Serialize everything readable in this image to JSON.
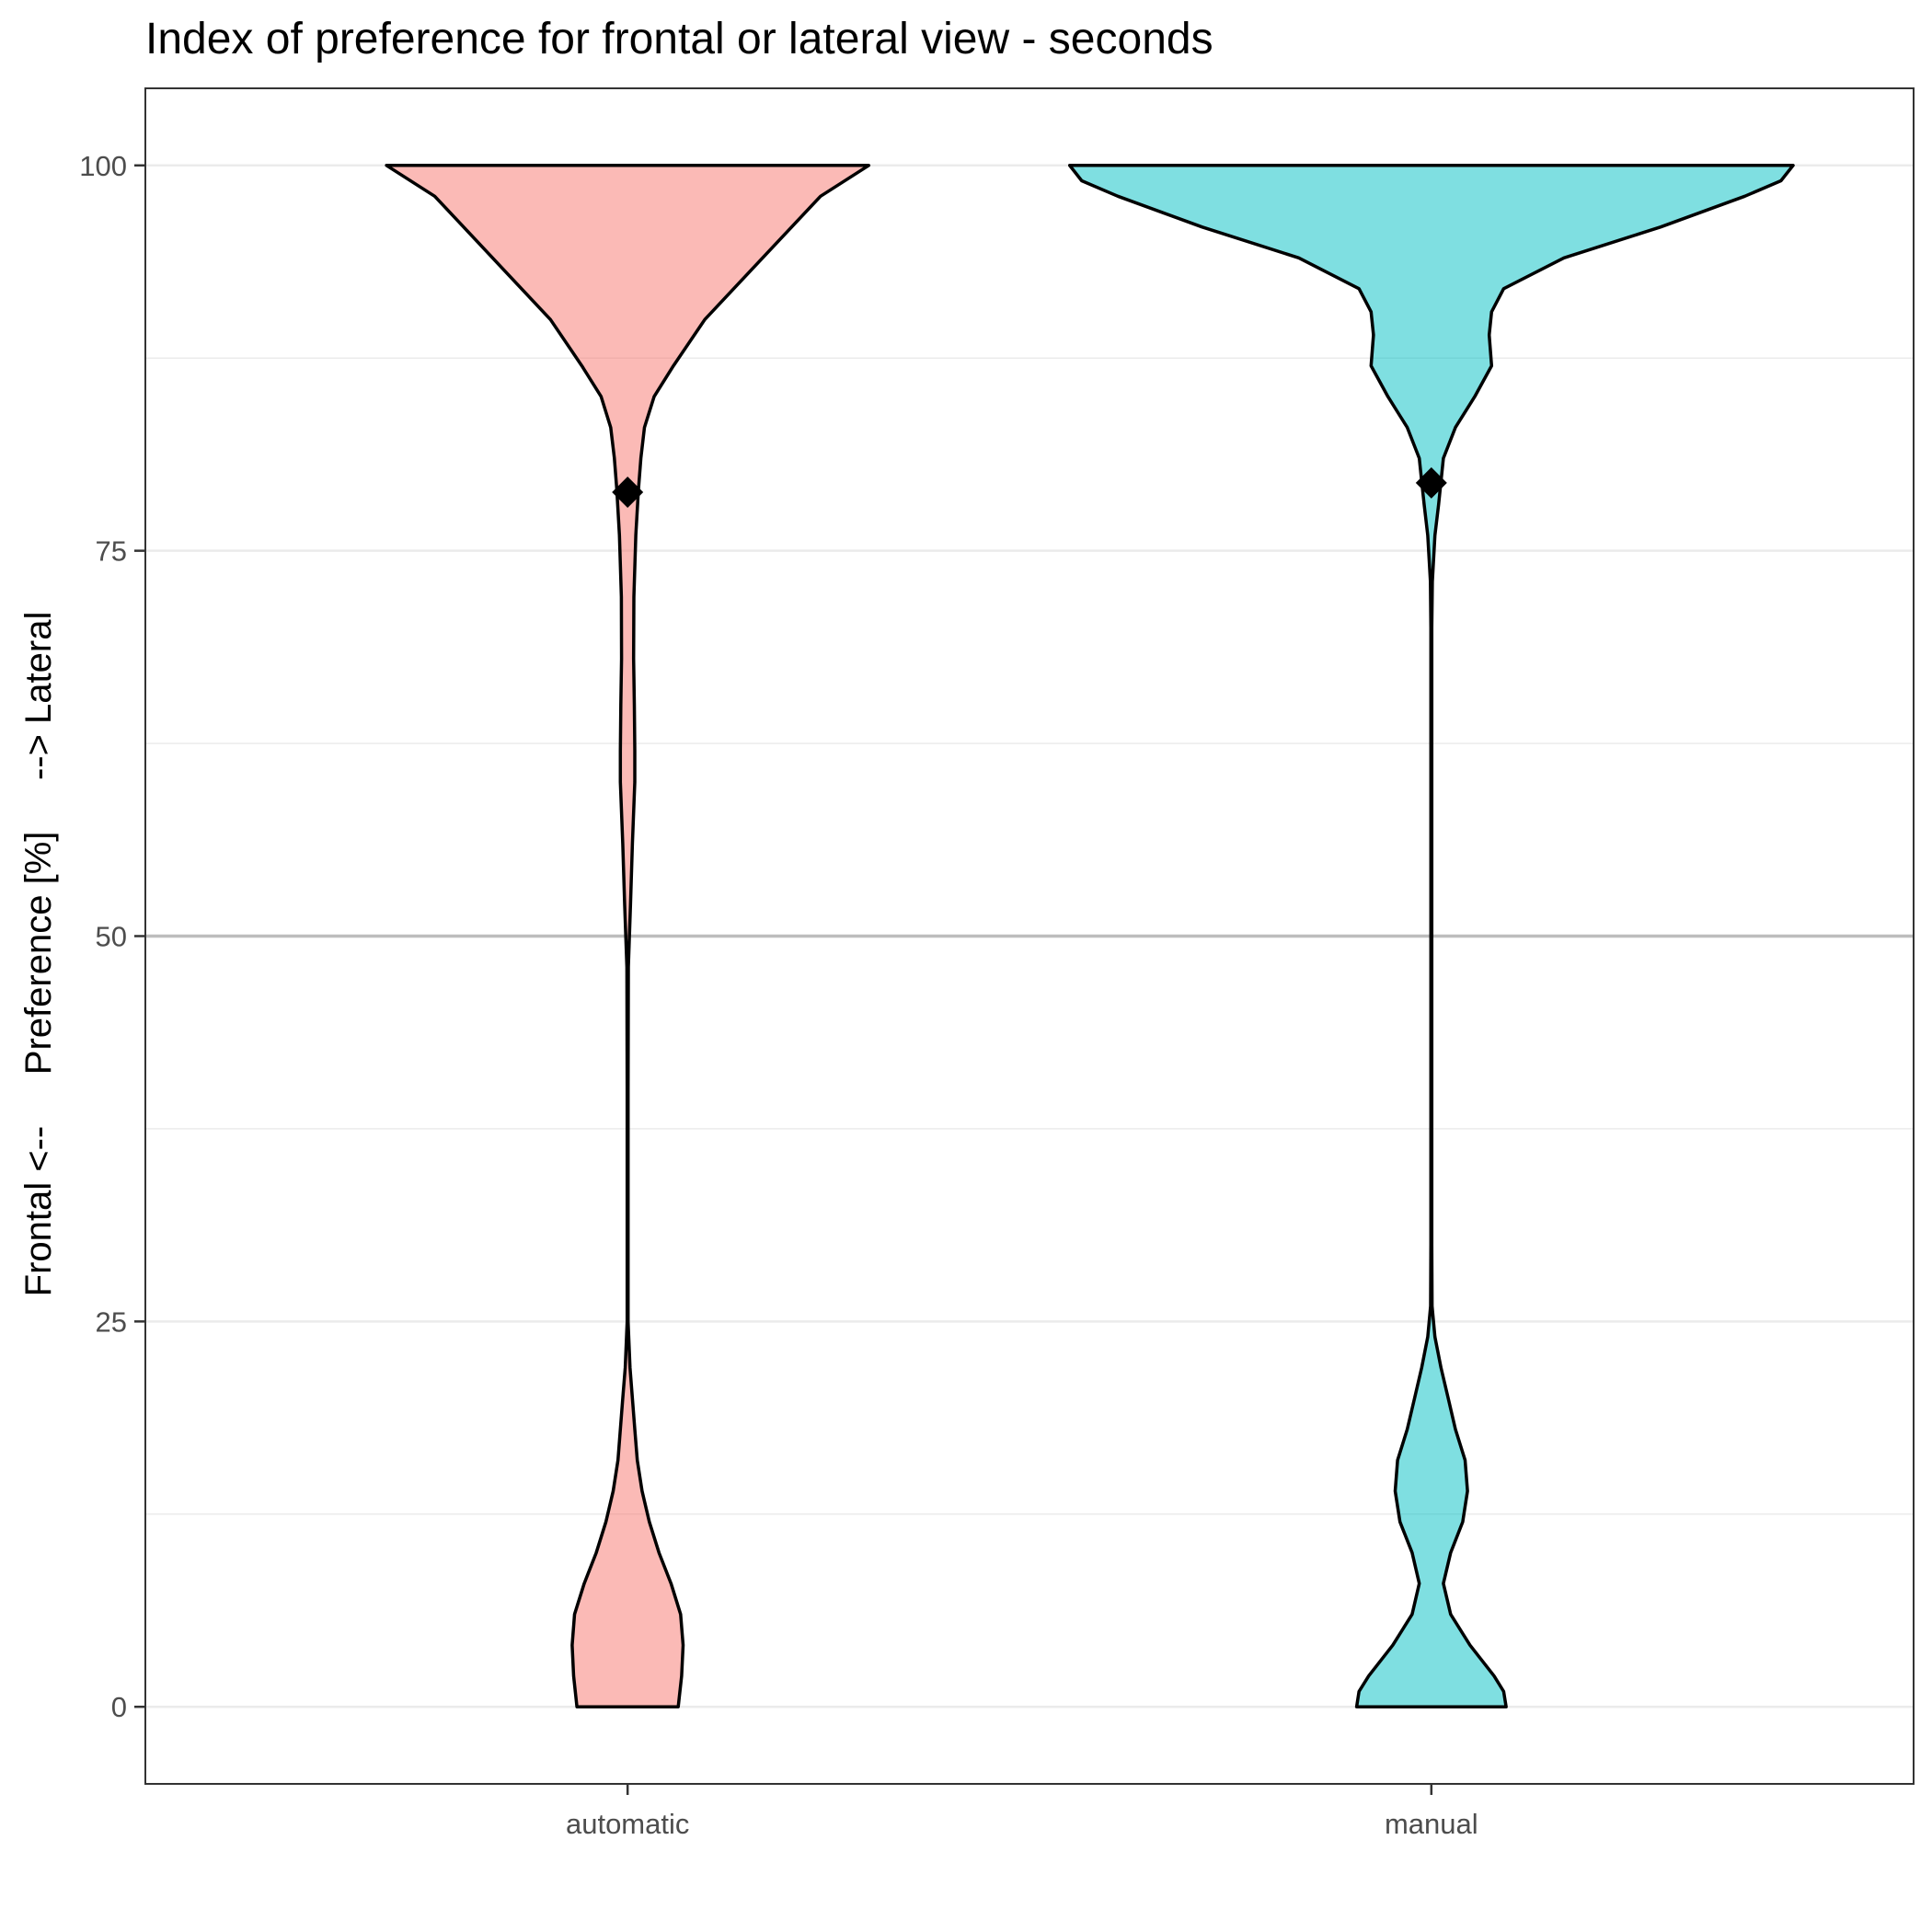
{
  "chart_data": {
    "type": "violin",
    "title": "Index of preference for frontal or lateral view - seconds",
    "xlabel": "",
    "ylabel": "Frontal <--     Preference [%]     --> Lateral",
    "ylim": [
      -5,
      105
    ],
    "yticks": [
      0,
      25,
      50,
      75,
      100
    ],
    "ytick_labels": [
      "0",
      "25",
      "50",
      "75",
      "100"
    ],
    "reference_line": 50,
    "grid": true,
    "categories": [
      "automatic",
      "manual"
    ],
    "series": [
      {
        "category": "automatic",
        "color": "#F8766D",
        "mean": 78.8,
        "density_profile": [
          [
            0,
            0.21
          ],
          [
            2,
            0.224
          ],
          [
            4,
            0.23
          ],
          [
            6,
            0.22
          ],
          [
            8,
            0.18
          ],
          [
            10,
            0.13
          ],
          [
            12,
            0.09
          ],
          [
            14,
            0.06
          ],
          [
            16,
            0.04
          ],
          [
            18,
            0.03
          ],
          [
            20,
            0.02
          ],
          [
            22,
            0.01
          ],
          [
            25,
            0.002
          ],
          [
            30,
            0.002
          ],
          [
            40,
            0.002
          ],
          [
            48,
            0.003
          ],
          [
            52,
            0.012
          ],
          [
            56,
            0.02
          ],
          [
            60,
            0.03
          ],
          [
            62,
            0.03
          ],
          [
            65,
            0.028
          ],
          [
            68,
            0.025
          ],
          [
            72,
            0.026
          ],
          [
            76,
            0.034
          ],
          [
            79,
            0.045
          ],
          [
            81,
            0.055
          ],
          [
            83,
            0.07
          ],
          [
            85,
            0.11
          ],
          [
            87,
            0.19
          ],
          [
            90,
            0.32
          ],
          [
            93,
            0.5
          ],
          [
            96,
            0.68
          ],
          [
            98,
            0.8
          ],
          [
            100,
            1.0
          ]
        ]
      },
      {
        "category": "manual",
        "color": "#00BFC4",
        "mean": 79.4,
        "density_profile": [
          [
            0,
            0.31
          ],
          [
            1,
            0.3
          ],
          [
            2,
            0.26
          ],
          [
            4,
            0.16
          ],
          [
            6,
            0.08
          ],
          [
            8,
            0.05
          ],
          [
            10,
            0.08
          ],
          [
            12,
            0.13
          ],
          [
            14,
            0.15
          ],
          [
            16,
            0.14
          ],
          [
            18,
            0.1
          ],
          [
            20,
            0.07
          ],
          [
            22,
            0.04
          ],
          [
            24,
            0.015
          ],
          [
            26,
            0.003
          ],
          [
            30,
            0.002
          ],
          [
            50,
            0.002
          ],
          [
            70,
            0.002
          ],
          [
            73,
            0.004
          ],
          [
            76,
            0.015
          ],
          [
            78,
            0.03
          ],
          [
            79.5,
            0.04
          ],
          [
            81,
            0.05
          ],
          [
            83,
            0.1
          ],
          [
            85,
            0.18
          ],
          [
            87,
            0.25
          ],
          [
            89,
            0.24
          ],
          [
            90.5,
            0.25
          ],
          [
            92,
            0.3
          ],
          [
            94,
            0.55
          ],
          [
            96,
            0.95
          ],
          [
            98,
            1.3
          ],
          [
            99,
            1.45
          ],
          [
            100,
            1.5
          ]
        ]
      }
    ]
  }
}
